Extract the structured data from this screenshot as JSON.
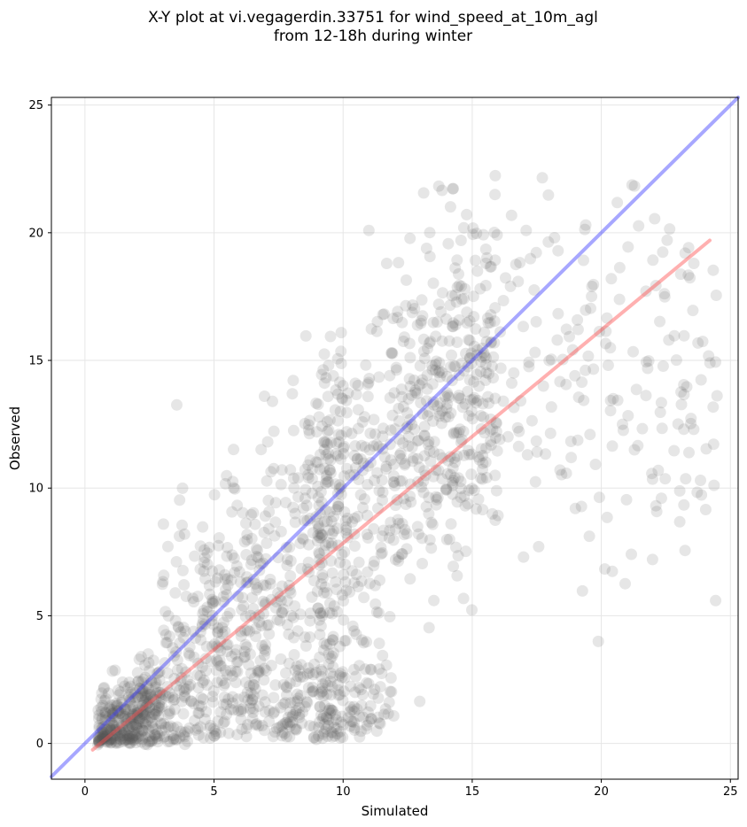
{
  "chart_data": {
    "type": "scatter",
    "title": "X-Y plot at vi.vegagerdin.33751 for wind_speed_at_10m_agl\nfrom 12-18h during winter",
    "xlabel": "Simulated",
    "ylabel": "Observed",
    "xlim": [
      -1.3,
      25.3
    ],
    "ylim": [
      -1.4,
      25.3
    ],
    "x_ticks": [
      0,
      5,
      10,
      15,
      20,
      25
    ],
    "y_ticks": [
      0,
      5,
      10,
      15,
      20,
      25
    ],
    "grid": true,
    "points": {
      "color": "#555555",
      "opacity": 0.15,
      "count": 1900
    },
    "lines": [
      {
        "kind": "identity",
        "color": "#3b3bff",
        "x": [
          -1.3,
          25.3
        ],
        "y": [
          -1.3,
          25.3
        ]
      },
      {
        "kind": "regression",
        "color": "#ff5050",
        "x": [
          0.3,
          24.2
        ],
        "y": [
          -0.25,
          19.7
        ]
      }
    ]
  }
}
